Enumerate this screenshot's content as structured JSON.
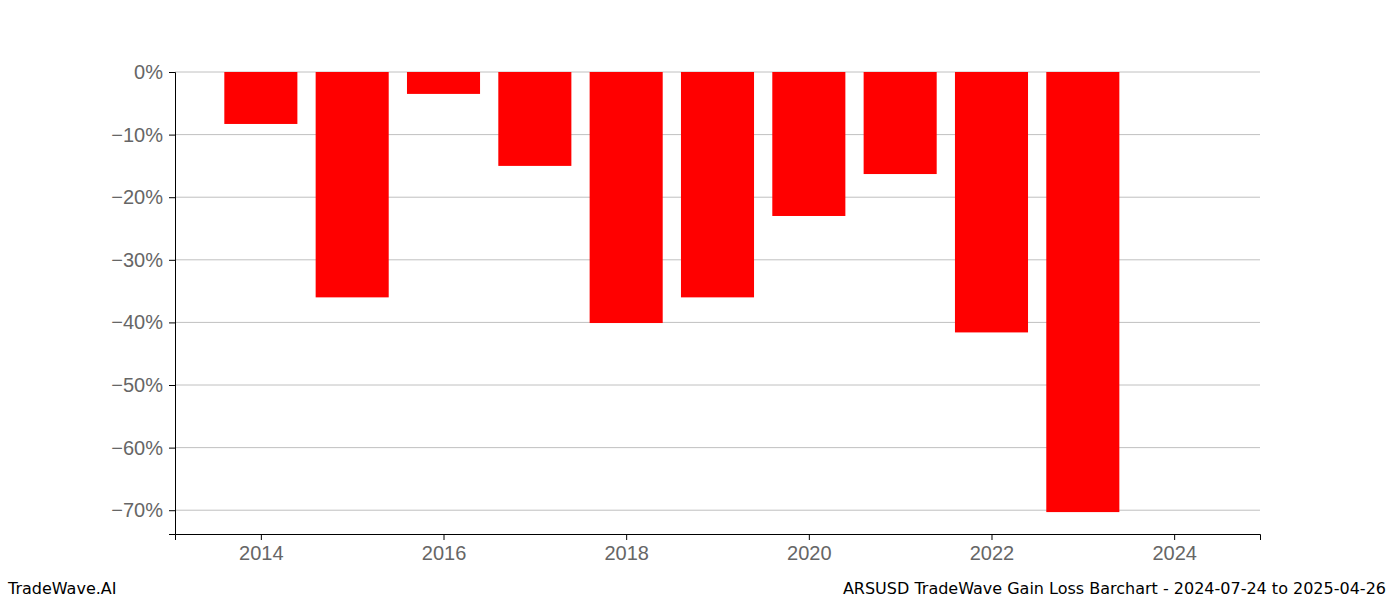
{
  "chart_data": {
    "type": "bar",
    "title": "ARSUSD TradeWave Gain Loss Barchart - 2024-07-24 to 2025-04-26",
    "annotations": [
      "TradeWave.AI"
    ],
    "x": [
      2014,
      2015,
      2016,
      2017,
      2018,
      2019,
      2020,
      2021,
      2022,
      2023
    ],
    "values": [
      -8.3,
      -36.0,
      -3.5,
      -15.0,
      -40.1,
      -36.0,
      -23.0,
      -16.3,
      -41.6,
      -70.3
    ],
    "color": "#ff0000",
    "xlim": [
      2013.06,
      2024.94
    ],
    "xticks": [
      2014,
      2016,
      2018,
      2020,
      2022,
      2024
    ],
    "ylim": [
      -73.8,
      0
    ],
    "yticks": [
      {
        "value": 0,
        "label": "0%"
      },
      {
        "value": -10,
        "label": "−10%"
      },
      {
        "value": -20,
        "label": "−20%"
      },
      {
        "value": -30,
        "label": "−30%"
      },
      {
        "value": -40,
        "label": "−40%"
      },
      {
        "value": -50,
        "label": "−50%"
      },
      {
        "value": -60,
        "label": "−60%"
      },
      {
        "value": -70,
        "label": "−70%"
      }
    ],
    "grid": true
  }
}
